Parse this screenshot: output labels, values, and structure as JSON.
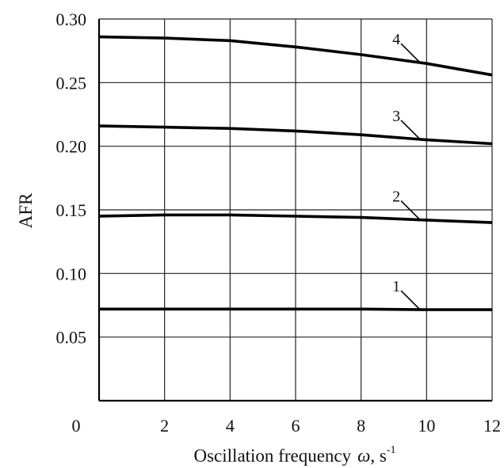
{
  "chart_data": {
    "type": "line",
    "title": "",
    "xlabel": "Oscillation frequency",
    "xlabel_symbol": "ω",
    "xlabel_unit": ", s",
    "xlabel_unit_exp": "-1",
    "ylabel": "AFR",
    "xlim": [
      0,
      12
    ],
    "ylim": [
      0,
      0.3
    ],
    "x_ticks": [
      "0",
      "2",
      "4",
      "6",
      "8",
      "10",
      "12"
    ],
    "y_ticks": [
      "0.05",
      "0.10",
      "0.15",
      "0.20",
      "0.25",
      "0.30"
    ],
    "grid": true,
    "series": [
      {
        "name": "1",
        "x": [
          0,
          2,
          4,
          6,
          8,
          10,
          12
        ],
        "values": [
          0.072,
          0.072,
          0.072,
          0.072,
          0.072,
          0.0715,
          0.0715
        ]
      },
      {
        "name": "2",
        "x": [
          0,
          2,
          4,
          6,
          8,
          10,
          12
        ],
        "values": [
          0.145,
          0.146,
          0.146,
          0.145,
          0.144,
          0.142,
          0.14
        ]
      },
      {
        "name": "3",
        "x": [
          0,
          2,
          4,
          6,
          8,
          10,
          12
        ],
        "values": [
          0.216,
          0.215,
          0.214,
          0.212,
          0.209,
          0.205,
          0.202
        ]
      },
      {
        "name": "4",
        "x": [
          0,
          2,
          4,
          6,
          8,
          10,
          12
        ],
        "values": [
          0.286,
          0.285,
          0.283,
          0.278,
          0.272,
          0.265,
          0.256
        ]
      }
    ]
  }
}
